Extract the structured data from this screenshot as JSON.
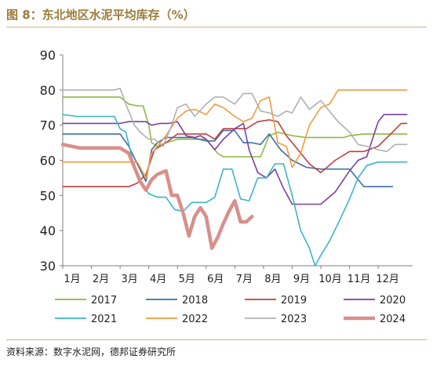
{
  "title": "图 8：东北地区水泥平均库存（%）",
  "source": "资料来源：数字水泥网，德邦证券研究所",
  "chart_data": {
    "type": "line",
    "title": "东北地区水泥平均库存（%）",
    "xlabel": "",
    "ylabel": "",
    "ylim": [
      30,
      90
    ],
    "yticks": [
      30,
      40,
      50,
      60,
      70,
      80,
      90
    ],
    "xlim": [
      1,
      13.2
    ],
    "xticks": [
      1,
      2,
      3,
      4,
      5,
      6,
      7,
      8,
      9,
      10,
      11,
      12
    ],
    "xticklabels": [
      "1月",
      "2月",
      "3月",
      "4月",
      "5月",
      "6月",
      "7月",
      "8月",
      "9月",
      "10月",
      "11月",
      "12月"
    ],
    "grid": false,
    "legend": "bottom",
    "series": [
      {
        "name": "2017",
        "color": "#8cba3c",
        "width": 1.6,
        "x": [
          1.0,
          2.0,
          3.0,
          3.3,
          3.6,
          3.8,
          4.0,
          4.1,
          4.3,
          4.6,
          5.0,
          5.5,
          6.0,
          6.4,
          6.6,
          7.0,
          7.5,
          7.9,
          8.2,
          8.5,
          9.0,
          9.5,
          10.0,
          10.5,
          10.8,
          11.0,
          11.5,
          12.0,
          12.5,
          13.0
        ],
        "y": [
          78,
          78,
          78,
          76,
          75.5,
          75.5,
          70,
          65,
          64,
          65,
          66,
          66,
          66,
          62,
          61,
          61,
          61,
          61,
          67,
          68,
          67,
          66.5,
          66.5,
          66.5,
          66.5,
          67,
          67.5,
          67.5,
          67.5,
          67.5
        ]
      },
      {
        "name": "2018",
        "color": "#3d6fa8",
        "width": 1.6,
        "x": [
          1.0,
          2.0,
          3.0,
          3.3,
          3.6,
          3.9,
          4.1,
          4.3,
          4.6,
          5.0,
          5.5,
          6.0,
          6.3,
          6.6,
          7.0,
          7.3,
          7.6,
          7.9,
          8.2,
          8.6,
          9.0,
          9.5,
          10.0,
          10.5,
          11.0,
          11.5,
          12.0,
          12.5
        ],
        "y": [
          67.5,
          67.5,
          67.5,
          64,
          59,
          54,
          63,
          65,
          66.5,
          66.5,
          66.5,
          65.5,
          65.5,
          68.5,
          68.5,
          65,
          65,
          64.5,
          67.5,
          63,
          60,
          58,
          57.5,
          57.5,
          57.5,
          52.5,
          52.5,
          52.5
        ]
      },
      {
        "name": "2019",
        "color": "#c43d3d",
        "width": 1.6,
        "x": [
          1.0,
          2.0,
          3.0,
          3.3,
          3.6,
          3.9,
          4.2,
          4.6,
          5.0,
          5.5,
          6.0,
          6.3,
          6.6,
          7.0,
          7.4,
          7.8,
          8.2,
          8.5,
          8.8,
          9.2,
          9.6,
          10.0,
          10.5,
          11.0,
          11.5,
          12.0,
          12.5,
          12.8,
          13.0
        ],
        "y": [
          52.5,
          52.5,
          52.5,
          52.5,
          53.5,
          56,
          63,
          65,
          67.5,
          67.5,
          67.5,
          66,
          69,
          69,
          69,
          71,
          71.5,
          71,
          67,
          63,
          59,
          56.5,
          60,
          62.5,
          62.5,
          64,
          68,
          70.5,
          70.5
        ]
      },
      {
        "name": "2020",
        "color": "#7b3fa0",
        "width": 1.6,
        "x": [
          1.0,
          2.0,
          3.0,
          3.3,
          3.6,
          3.9,
          4.1,
          4.4,
          4.7,
          5.0,
          5.3,
          5.6,
          5.8,
          6.0,
          6.3,
          6.6,
          7.0,
          7.3,
          7.5,
          7.8,
          8.1,
          8.4,
          8.7,
          9.0,
          9.5,
          10.0,
          10.5,
          11.0,
          11.3,
          11.6,
          12.0,
          12.2,
          12.5,
          13.0
        ],
        "y": [
          70.5,
          70.5,
          70.5,
          71,
          71,
          71,
          70,
          70.5,
          70.5,
          71,
          67,
          66.5,
          67,
          66,
          63,
          66,
          69,
          70.5,
          63,
          56.5,
          55,
          57.5,
          52,
          47.5,
          47.5,
          47.5,
          51,
          57,
          60,
          61,
          71,
          73,
          73,
          73
        ]
      },
      {
        "name": "2021",
        "color": "#3bb5c6",
        "width": 1.6,
        "x": [
          1.0,
          1.5,
          2.0,
          2.5,
          2.8,
          3.0,
          3.2,
          3.5,
          3.8,
          4.0,
          4.3,
          4.6,
          4.9,
          5.2,
          5.5,
          5.8,
          6.0,
          6.3,
          6.6,
          6.9,
          7.2,
          7.5,
          7.8,
          8.1,
          8.4,
          8.7,
          9.0,
          9.3,
          9.6,
          9.8,
          10.0,
          10.3,
          10.6,
          11.0,
          11.3,
          11.6,
          12.0,
          12.5,
          13.0
        ],
        "y": [
          73,
          72.5,
          72.5,
          72.5,
          72.5,
          69,
          68,
          58,
          53,
          50.5,
          49.5,
          49.5,
          46,
          45.5,
          48,
          48,
          48,
          49.5,
          57.5,
          57.5,
          49,
          48.5,
          55,
          55,
          59,
          59,
          50,
          40,
          35,
          30,
          33,
          37,
          42,
          49,
          55,
          58.5,
          59.5,
          59.5,
          59.5
        ]
      },
      {
        "name": "2022",
        "color": "#f39a3c",
        "width": 1.6,
        "x": [
          1.0,
          2.0,
          3.0,
          3.3,
          3.6,
          3.9,
          4.1,
          4.3,
          4.6,
          5.0,
          5.3,
          5.6,
          6.0,
          6.3,
          6.6,
          7.0,
          7.3,
          7.6,
          7.9,
          8.2,
          8.5,
          8.8,
          9.0,
          9.3,
          9.6,
          10.0,
          10.3,
          10.6,
          11.0,
          11.5,
          12.0,
          12.5,
          13.0
        ],
        "y": [
          59.5,
          59.5,
          59.5,
          59.5,
          59.5,
          55,
          62,
          64,
          67,
          72,
          74,
          74.5,
          73,
          76,
          75,
          72.5,
          71,
          72,
          77,
          78,
          65,
          64,
          58,
          62,
          70,
          75,
          76,
          80,
          80,
          80,
          80,
          80,
          80
        ]
      },
      {
        "name": "2023",
        "color": "#b0b0b0",
        "width": 1.6,
        "x": [
          1.0,
          2.0,
          2.8,
          3.0,
          3.2,
          3.5,
          3.7,
          4.0,
          4.2,
          4.5,
          4.8,
          5.0,
          5.3,
          5.6,
          6.0,
          6.3,
          6.6,
          7.0,
          7.3,
          7.6,
          7.9,
          8.2,
          8.5,
          8.8,
          9.0,
          9.3,
          9.6,
          10.0,
          10.3,
          10.6,
          11.0,
          11.3,
          11.6,
          12.0,
          12.3,
          12.6,
          13.0
        ],
        "y": [
          80,
          80,
          80,
          80.5,
          76,
          70,
          68,
          66,
          66,
          64,
          70,
          75,
          76,
          72.5,
          76,
          78,
          78,
          76,
          79,
          79,
          74,
          73.5,
          72.5,
          74,
          73.5,
          78,
          74.5,
          77,
          74,
          71,
          68,
          64.5,
          64,
          63,
          62.5,
          64.5,
          64.5
        ]
      },
      {
        "name": "2024",
        "color": "#d88f8a",
        "width": 4.5,
        "x": [
          1.0,
          1.3,
          1.6,
          2.0,
          2.5,
          2.8,
          3.0,
          3.3,
          3.5,
          3.7,
          3.9,
          4.1,
          4.3,
          4.6,
          4.8,
          5.0,
          5.2,
          5.4,
          5.6,
          5.8,
          6.0,
          6.2,
          6.4,
          6.6,
          6.8,
          7.0,
          7.2,
          7.4,
          7.6
        ],
        "y": [
          64.5,
          64,
          63.5,
          63.5,
          63.5,
          63.5,
          63.5,
          62,
          58,
          54,
          51.5,
          54.5,
          56,
          57,
          50,
          50,
          45,
          38.5,
          44,
          46.5,
          44,
          35,
          38,
          42,
          45.5,
          48.5,
          42.5,
          42.5,
          44
        ]
      }
    ]
  }
}
